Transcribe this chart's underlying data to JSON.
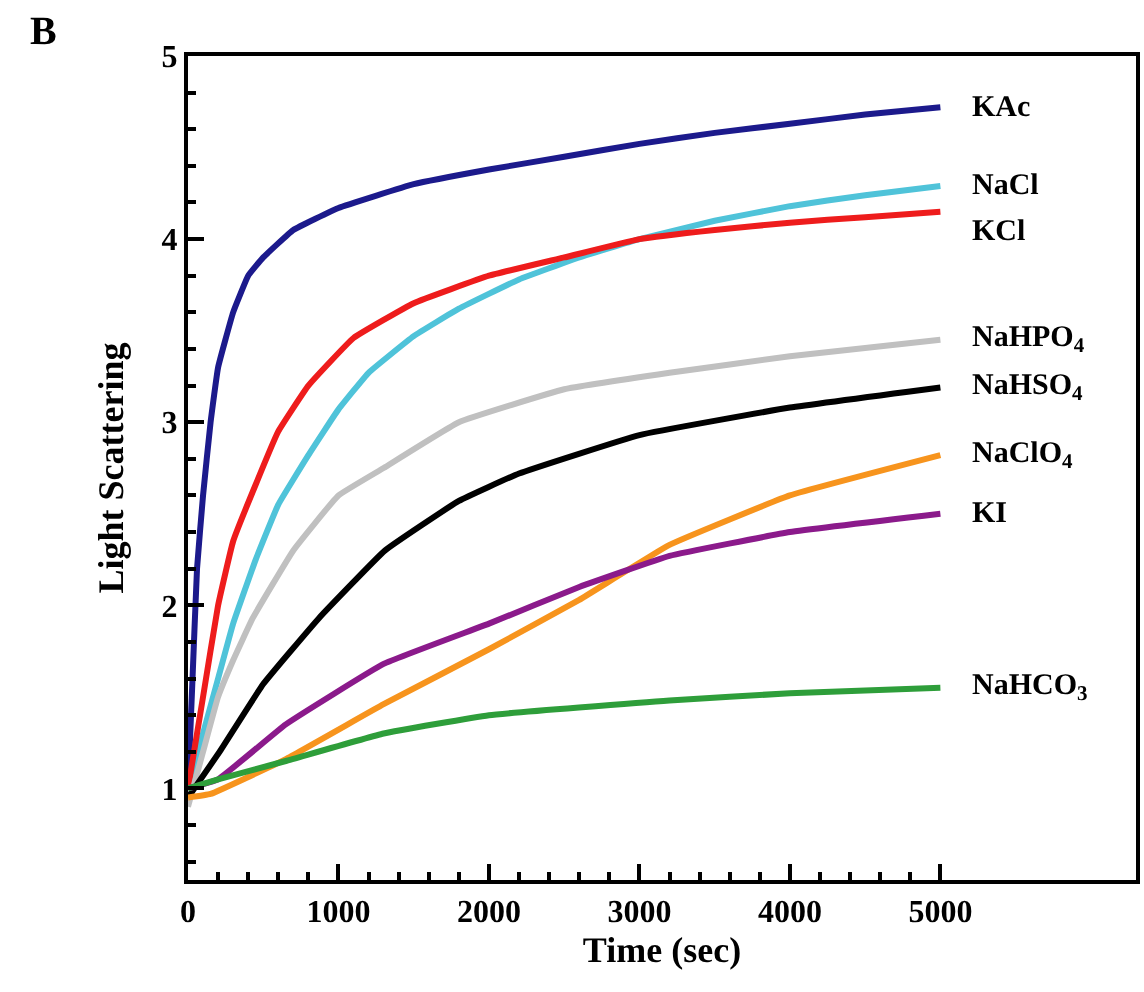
{
  "chart_data": {
    "type": "line",
    "xlabel": "Time (sec)",
    "ylabel": "Light Scattering",
    "annotations": [
      "B"
    ],
    "xlim": [
      0,
      6300
    ],
    "ylim": [
      0.5,
      5
    ],
    "xticks": [
      0,
      {
        "value": 200,
        "label": null
      },
      {
        "value": 400,
        "label": null
      },
      {
        "value": 600,
        "label": null
      },
      {
        "value": 800,
        "label": null
      },
      1000,
      {
        "value": 1200,
        "label": null
      },
      {
        "value": 1400,
        "label": null
      },
      {
        "value": 1600,
        "label": null
      },
      {
        "value": 1800,
        "label": null
      },
      2000,
      {
        "value": 2200,
        "label": null
      },
      {
        "value": 2400,
        "label": null
      },
      {
        "value": 2600,
        "label": null
      },
      {
        "value": 2800,
        "label": null
      },
      3000,
      {
        "value": 3200,
        "label": null
      },
      {
        "value": 3400,
        "label": null
      },
      {
        "value": 3600,
        "label": null
      },
      {
        "value": 3800,
        "label": null
      },
      4000,
      {
        "value": 4200,
        "label": null
      },
      {
        "value": 4400,
        "label": null
      },
      {
        "value": 4600,
        "label": null
      },
      {
        "value": 4800,
        "label": null
      },
      5000
    ],
    "yticks": [
      {
        "value": 0.6,
        "label": null
      },
      {
        "value": 0.8,
        "label": null
      },
      1,
      {
        "value": 1.2,
        "label": null
      },
      {
        "value": 1.4,
        "label": null
      },
      {
        "value": 1.6,
        "label": null
      },
      {
        "value": 1.8,
        "label": null
      },
      2,
      {
        "value": 2.2,
        "label": null
      },
      {
        "value": 2.4,
        "label": null
      },
      {
        "value": 2.6,
        "label": null
      },
      {
        "value": 2.8,
        "label": null
      },
      3,
      {
        "value": 3.2,
        "label": null
      },
      {
        "value": 3.4,
        "label": null
      },
      {
        "value": 3.6,
        "label": null
      },
      {
        "value": 3.8,
        "label": null
      },
      4,
      {
        "value": 4.2,
        "label": null
      },
      {
        "value": 4.4,
        "label": null
      },
      {
        "value": 4.6,
        "label": null
      },
      {
        "value": 4.8,
        "label": null
      },
      5
    ],
    "legend": false,
    "marker": "none",
    "line_style": "solid",
    "series": [
      {
        "name": "KAc",
        "color": "#1c1a8c",
        "x": [
          0,
          30,
          60,
          100,
          150,
          200,
          300,
          400,
          500,
          700,
          1000,
          1500,
          2000,
          2500,
          3000,
          3500,
          4000,
          4500,
          5000
        ],
        "values": [
          1.0,
          1.6,
          2.2,
          2.6,
          3.0,
          3.3,
          3.6,
          3.8,
          3.9,
          4.05,
          4.17,
          4.3,
          4.38,
          4.45,
          4.52,
          4.58,
          4.63,
          4.68,
          4.72
        ]
      },
      {
        "name": "NaCl",
        "color": "#4fc3d9",
        "x": [
          0,
          100,
          200,
          300,
          450,
          600,
          800,
          1000,
          1200,
          1500,
          1800,
          2200,
          2600,
          3000,
          3500,
          4000,
          4500,
          5000
        ],
        "values": [
          1.0,
          1.3,
          1.6,
          1.9,
          2.25,
          2.55,
          2.82,
          3.07,
          3.27,
          3.47,
          3.62,
          3.78,
          3.9,
          4.0,
          4.1,
          4.18,
          4.24,
          4.29
        ]
      },
      {
        "name": "KCl",
        "color": "#ee1c1c",
        "x": [
          0,
          100,
          200,
          300,
          450,
          600,
          800,
          1100,
          1500,
          2000,
          2500,
          3000,
          3500,
          4000,
          4500,
          5000
        ],
        "values": [
          1.0,
          1.5,
          2.0,
          2.35,
          2.66,
          2.95,
          3.2,
          3.46,
          3.65,
          3.8,
          3.9,
          4.0,
          4.05,
          4.09,
          4.12,
          4.15
        ]
      },
      {
        "name": "NaHPO$_{4}$",
        "color": "#c0c0c0",
        "x": [
          0,
          100,
          200,
          300,
          430,
          700,
          1000,
          1300,
          1800,
          2500,
          3200,
          4000,
          5000
        ],
        "values": [
          0.9,
          1.2,
          1.5,
          1.7,
          1.93,
          2.3,
          2.6,
          2.75,
          3.0,
          3.18,
          3.27,
          3.36,
          3.45
        ]
      },
      {
        "name": "NaHSO$_{4}$",
        "color": "#000000",
        "x": [
          0,
          210,
          500,
          870,
          1310,
          1800,
          2200,
          3000,
          4000,
          5000
        ],
        "values": [
          0.95,
          1.2,
          1.57,
          1.93,
          2.3,
          2.57,
          2.72,
          2.93,
          3.08,
          3.19
        ]
      },
      {
        "name": "NaClO$_{4}$",
        "color": "#f7941d",
        "x": [
          0,
          150,
          650,
          1300,
          2000,
          2600,
          3200,
          4000,
          5000
        ],
        "values": [
          0.95,
          0.97,
          1.16,
          1.46,
          1.76,
          2.03,
          2.33,
          2.6,
          2.82
        ]
      },
      {
        "name": "KI",
        "color": "#8b1a8b",
        "x": [
          0,
          200,
          650,
          1300,
          2000,
          2600,
          3200,
          4000,
          5000
        ],
        "values": [
          1.0,
          1.05,
          1.35,
          1.68,
          1.9,
          2.1,
          2.27,
          2.4,
          2.5
        ]
      },
      {
        "name": "NaHCO$_{3}$",
        "color": "#2e9e3a",
        "x": [
          0,
          200,
          650,
          1300,
          2000,
          3200,
          4000,
          5000
        ],
        "values": [
          1.0,
          1.05,
          1.15,
          1.3,
          1.4,
          1.48,
          1.52,
          1.55
        ]
      }
    ]
  }
}
